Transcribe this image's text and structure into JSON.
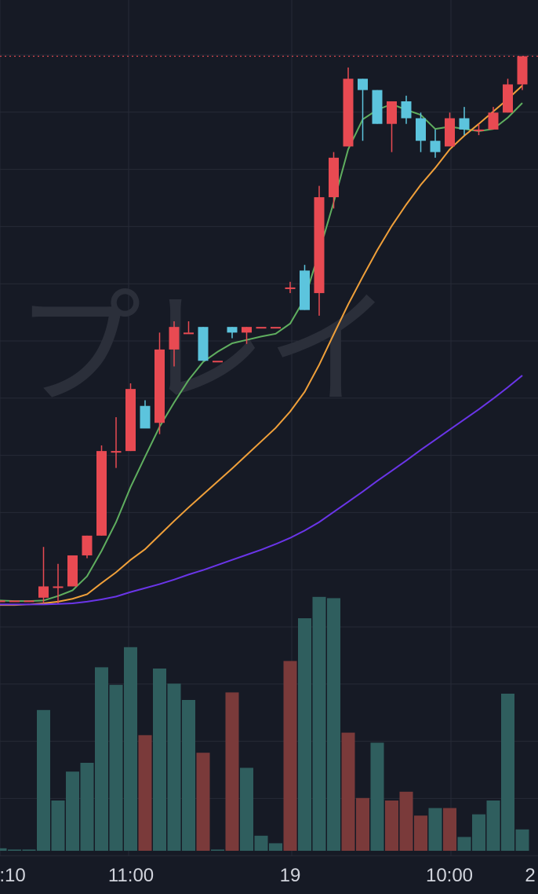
{
  "watermark": "プレイ",
  "colors": {
    "background": "#161a25",
    "grid": "#262a36",
    "up_candle": "#e84a52",
    "down_candle": "#5cc4dd",
    "up_volume": "#2f5e5e",
    "down_volume": "#7a3a3a",
    "ma_short": "#5fae5f",
    "ma_mid": "#f0a03a",
    "ma_long": "#6a35e8",
    "price_line": "#e84a52"
  },
  "chart_data": {
    "type": "candlestick",
    "x_ticks": [
      ":10",
      "11:00",
      "19",
      "10:00",
      "2"
    ],
    "y_range": [
      0,
      100
    ],
    "price_line": 97,
    "grid": true,
    "candles": [
      {
        "o": 0.5,
        "h": 0.5,
        "l": 0.5,
        "c": 0.5
      },
      {
        "o": 0.5,
        "h": 0.5,
        "l": 0.5,
        "c": 0.5
      },
      {
        "o": 0.5,
        "h": 0.5,
        "l": 0.5,
        "c": 0.5
      },
      {
        "o": 1,
        "h": 10,
        "l": 0,
        "c": 3
      },
      {
        "o": 3,
        "h": 7,
        "l": 0,
        "c": 3
      },
      {
        "o": 3,
        "h": 8,
        "l": 3,
        "c": 8.5
      },
      {
        "o": 8.5,
        "h": 12,
        "l": 8,
        "c": 12
      },
      {
        "o": 12,
        "h": 28,
        "l": 12,
        "c": 27
      },
      {
        "o": 27,
        "h": 33,
        "l": 24,
        "c": 27
      },
      {
        "o": 27,
        "h": 39,
        "l": 27,
        "c": 38
      },
      {
        "o": 35,
        "h": 36,
        "l": 32,
        "c": 31
      },
      {
        "o": 32,
        "h": 48,
        "l": 30,
        "c": 45
      },
      {
        "o": 45,
        "h": 50,
        "l": 42,
        "c": 49
      },
      {
        "o": 48,
        "h": 50,
        "l": 48,
        "c": 48
      },
      {
        "o": 49,
        "h": 49,
        "l": 43,
        "c": 43
      },
      {
        "o": 43,
        "h": 43,
        "l": 43,
        "c": 43
      },
      {
        "o": 49,
        "h": 49,
        "l": 47,
        "c": 48
      },
      {
        "o": 48,
        "h": 49,
        "l": 46,
        "c": 49
      },
      {
        "o": 49,
        "h": 49,
        "l": 49,
        "c": 49
      },
      {
        "o": 49,
        "h": 49,
        "l": 49,
        "c": 49
      },
      {
        "o": 56,
        "h": 57,
        "l": 55,
        "c": 56
      },
      {
        "o": 59,
        "h": 60,
        "l": 52,
        "c": 52
      },
      {
        "o": 55,
        "h": 74,
        "l": 51,
        "c": 72
      },
      {
        "o": 72,
        "h": 80,
        "l": 70,
        "c": 79
      },
      {
        "o": 81,
        "h": 95,
        "l": 81,
        "c": 93
      },
      {
        "o": 93,
        "h": 93,
        "l": 82,
        "c": 91
      },
      {
        "o": 91,
        "h": 91,
        "l": 85,
        "c": 85
      },
      {
        "o": 85,
        "h": 89,
        "l": 80,
        "c": 89
      },
      {
        "o": 89,
        "h": 90,
        "l": 85,
        "c": 86
      },
      {
        "o": 86,
        "h": 87,
        "l": 80,
        "c": 82
      },
      {
        "o": 82,
        "h": 84,
        "l": 79,
        "c": 80
      },
      {
        "o": 81,
        "h": 87,
        "l": 81,
        "c": 86
      },
      {
        "o": 86,
        "h": 88,
        "l": 83,
        "c": 84
      },
      {
        "o": 84,
        "h": 85,
        "l": 83,
        "c": 84
      },
      {
        "o": 84,
        "h": 88,
        "l": 84,
        "c": 87
      },
      {
        "o": 87,
        "h": 93,
        "l": 87,
        "c": 92
      },
      {
        "o": 92,
        "h": 97,
        "l": 91,
        "c": 97
      }
    ],
    "volumes": [
      {
        "v": 1,
        "up": true
      },
      {
        "v": 0.5,
        "up": true
      },
      {
        "v": 0.5,
        "up": true
      },
      {
        "v": 56,
        "up": true
      },
      {
        "v": 20,
        "up": true
      },
      {
        "v": 31.5,
        "up": true
      },
      {
        "v": 35,
        "up": true
      },
      {
        "v": 73,
        "up": true
      },
      {
        "v": 66,
        "up": true
      },
      {
        "v": 81,
        "up": true
      },
      {
        "v": 46,
        "up": false
      },
      {
        "v": 72.5,
        "up": true
      },
      {
        "v": 66.5,
        "up": true
      },
      {
        "v": 60,
        "up": true
      },
      {
        "v": 39,
        "up": false
      },
      {
        "v": 0.5,
        "up": true
      },
      {
        "v": 63,
        "up": false
      },
      {
        "v": 33,
        "up": true
      },
      {
        "v": 6,
        "up": true
      },
      {
        "v": 3,
        "up": true
      },
      {
        "v": 75.5,
        "up": false
      },
      {
        "v": 92.5,
        "up": true
      },
      {
        "v": 101,
        "up": true
      },
      {
        "v": 100.5,
        "up": true
      },
      {
        "v": 47,
        "up": false
      },
      {
        "v": 21,
        "up": false
      },
      {
        "v": 43,
        "up": true
      },
      {
        "v": 20,
        "up": false
      },
      {
        "v": 23.5,
        "up": false
      },
      {
        "v": 14,
        "up": false
      },
      {
        "v": 17,
        "up": true
      },
      {
        "v": 17,
        "up": false
      },
      {
        "v": 5.5,
        "up": true
      },
      {
        "v": 14.5,
        "up": true
      },
      {
        "v": 20,
        "up": true
      },
      {
        "v": 62.5,
        "up": true
      },
      {
        "v": 8.5,
        "up": true
      }
    ],
    "ma_short": [
      0.5,
      0.4,
      0.4,
      0.5,
      1.3,
      2.3,
      4.8,
      9.3,
      14.4,
      20.6,
      26,
      31.3,
      35.6,
      39.6,
      42.8,
      44.6,
      46.1,
      46.7,
      47.3,
      47.8,
      49.6,
      54,
      62.3,
      71.1,
      80.5,
      85.8,
      87.5,
      88.5,
      87.5,
      86.6,
      84.1,
      84.5,
      84.1,
      83.7,
      84.1,
      86.1,
      88.7
    ],
    "ma_mid": [
      -0.3,
      -0.3,
      -0.2,
      0,
      0.3,
      0.8,
      1.6,
      3.6,
      5.5,
      7.7,
      9.6,
      12.1,
      14.6,
      17,
      19.3,
      21.6,
      23.9,
      26.3,
      28.7,
      31.1,
      34,
      37.5,
      42.3,
      47.7,
      53,
      57.9,
      62.6,
      66.9,
      70.7,
      74.2,
      77.2,
      80.5,
      82.9,
      85,
      87.2,
      89.4,
      91.8
    ],
    "ma_long": [
      -0.2,
      -0.2,
      -0.2,
      -0.2,
      -0.1,
      0,
      0.3,
      0.7,
      1.2,
      2,
      2.7,
      3.4,
      4.2,
      5.1,
      5.9,
      6.8,
      7.7,
      8.6,
      9.5,
      10.5,
      11.6,
      12.9,
      14.4,
      16.2,
      18,
      19.8,
      21.7,
      23.5,
      25.3,
      27.2,
      29,
      30.8,
      32.6,
      34.4,
      36.3,
      38.3,
      40.4
    ]
  }
}
